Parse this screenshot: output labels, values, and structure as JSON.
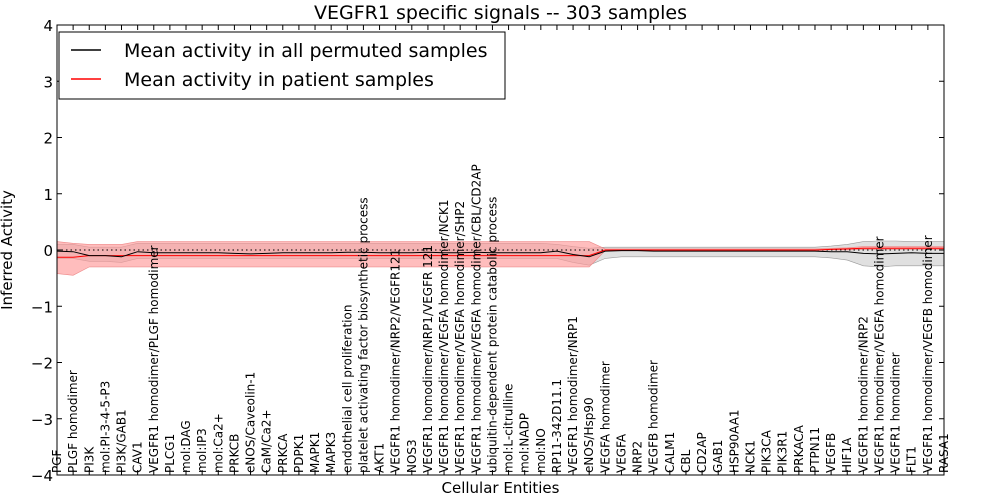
{
  "chart_data": {
    "type": "line",
    "title": "VEGFR1 specific signals -- 303 samples",
    "xlabel": "Cellular Entities",
    "ylabel": "Inferred Activity",
    "ylim": [
      -4,
      4
    ],
    "yticks": [
      "4",
      "3",
      "2",
      "1",
      "0",
      "−1",
      "−2",
      "−3",
      "−4"
    ],
    "grid": false,
    "legend": {
      "position": "top-left",
      "entries": [
        {
          "label": "Mean activity in all permuted samples",
          "color": "#000000"
        },
        {
          "label": "Mean activity in patient samples",
          "color": "#ff0000"
        }
      ]
    },
    "categories": [
      "PGF",
      "PLGF homodimer",
      "PI3K",
      "mol:PI-3-4-5-P3",
      "PI3K/GAB1",
      "CAV1",
      "VEGFR1 homodimer/PLGF homodimer",
      "PLCG1",
      "mol:DAG",
      "mol:IP3",
      "mol:Ca2+",
      "PRKCB",
      "eNOS/Caveolin-1",
      "CaM/Ca2+",
      "PRKCA",
      "PDPK1",
      "MAPK1",
      "MAPK3",
      "endothelial cell proliferation",
      "platelet activating factor biosynthetic process",
      "AKT1",
      "VEGFR1 homodimer/NRP2/VEGFR121",
      "NOS3",
      "VEGFR1 homodimer/NRP1/VEGFR 121",
      "VEGFR1 homodimer/VEGFA homodimer/NCK1",
      "VEGFR1 homodimer/VEGFA homodimer/SHP2",
      "VEGFR1 homodimer/VEGFA homodimer/CBL/CD2AP",
      "ubiquitin-dependent protein catabolic process",
      "mol:L-citrulline",
      "mol:NADP",
      "mol:NO",
      "RP11-342D11.1",
      "VEGFR1 homodimer/NRP1",
      "eNOS/Hsp90",
      "VEGFA homodimer",
      "VEGFA",
      "NRP2",
      "VEGFB homodimer",
      "CALM1",
      "CBL",
      "CD2AP",
      "GAB1",
      "HSP90AA1",
      "NCK1",
      "PIK3CA",
      "PIK3R1",
      "PRKACA",
      "PTPN11",
      "VEGFB",
      "HIF1A",
      "VEGFR1 homodimer/NRP2",
      "VEGFR1 homodimer/VEGFA homodimer",
      "VEGFR1 homodimer",
      "FLT1",
      "VEGFR1 homodimer/VEGFB homodimer",
      "RASA1"
    ],
    "series": [
      {
        "name": "Mean activity in all permuted samples",
        "color": "#000000",
        "values": [
          -0.02,
          -0.03,
          -0.1,
          -0.1,
          -0.12,
          -0.03,
          -0.05,
          -0.05,
          -0.05,
          -0.05,
          -0.05,
          -0.06,
          -0.07,
          -0.06,
          -0.05,
          -0.05,
          -0.05,
          -0.05,
          -0.04,
          -0.04,
          -0.05,
          -0.05,
          -0.05,
          -0.04,
          -0.05,
          -0.05,
          -0.04,
          -0.05,
          -0.05,
          -0.05,
          -0.05,
          -0.02,
          -0.08,
          -0.12,
          -0.02,
          -0.01,
          -0.01,
          -0.02,
          -0.02,
          -0.02,
          -0.02,
          -0.02,
          -0.02,
          -0.02,
          -0.02,
          -0.02,
          -0.02,
          -0.02,
          -0.03,
          -0.03,
          -0.06,
          -0.07,
          -0.06,
          -0.05,
          -0.06,
          -0.06
        ],
        "band": {
          "fill": "#cccccc",
          "lower": [
            -0.15,
            -0.15,
            -0.2,
            -0.2,
            -0.22,
            -0.15,
            -0.15,
            -0.15,
            -0.15,
            -0.15,
            -0.15,
            -0.15,
            -0.15,
            -0.15,
            -0.15,
            -0.15,
            -0.15,
            -0.15,
            -0.15,
            -0.15,
            -0.15,
            -0.15,
            -0.15,
            -0.15,
            -0.15,
            -0.15,
            -0.15,
            -0.15,
            -0.15,
            -0.15,
            -0.15,
            -0.15,
            -0.22,
            -0.27,
            -0.15,
            -0.12,
            -0.12,
            -0.12,
            -0.12,
            -0.12,
            -0.12,
            -0.12,
            -0.12,
            -0.12,
            -0.12,
            -0.12,
            -0.12,
            -0.12,
            -0.14,
            -0.18,
            -0.28,
            -0.3,
            -0.28,
            -0.28,
            -0.28,
            -0.28
          ],
          "upper": [
            0.1,
            0.1,
            0.05,
            0.05,
            0.05,
            0.12,
            0.12,
            0.12,
            0.12,
            0.12,
            0.12,
            0.12,
            0.12,
            0.12,
            0.12,
            0.12,
            0.12,
            0.12,
            0.12,
            0.12,
            0.12,
            0.12,
            0.12,
            0.12,
            0.12,
            0.12,
            0.12,
            0.12,
            0.12,
            0.12,
            0.12,
            0.1,
            0.06,
            0.03,
            0.05,
            0.05,
            0.05,
            0.05,
            0.05,
            0.05,
            0.05,
            0.05,
            0.05,
            0.05,
            0.05,
            0.05,
            0.05,
            0.05,
            0.07,
            0.1,
            0.15,
            0.16,
            0.16,
            0.15,
            0.15,
            0.15
          ]
        }
      },
      {
        "name": "Mean activity in patient samples",
        "color": "#ff0000",
        "values": [
          -0.13,
          -0.13,
          -0.1,
          -0.1,
          -0.1,
          -0.1,
          -0.1,
          -0.1,
          -0.1,
          -0.1,
          -0.1,
          -0.1,
          -0.1,
          -0.1,
          -0.1,
          -0.1,
          -0.1,
          -0.1,
          -0.1,
          -0.1,
          -0.1,
          -0.1,
          -0.1,
          -0.1,
          -0.1,
          -0.1,
          -0.1,
          -0.1,
          -0.1,
          -0.1,
          -0.1,
          -0.1,
          -0.1,
          -0.1,
          0.0,
          0.0,
          0.0,
          0.0,
          0.0,
          0.0,
          0.0,
          0.0,
          0.0,
          0.0,
          0.0,
          0.0,
          0.0,
          0.0,
          0.01,
          0.02,
          0.03,
          0.03,
          0.03,
          0.03,
          0.03,
          0.03
        ],
        "band": {
          "fill": "#ff9999",
          "lower": [
            -0.42,
            -0.45,
            -0.3,
            -0.3,
            -0.3,
            -0.3,
            -0.3,
            -0.3,
            -0.3,
            -0.3,
            -0.3,
            -0.3,
            -0.3,
            -0.3,
            -0.3,
            -0.3,
            -0.3,
            -0.3,
            -0.3,
            -0.3,
            -0.3,
            -0.3,
            -0.3,
            -0.3,
            -0.3,
            -0.3,
            -0.3,
            -0.3,
            -0.3,
            -0.3,
            -0.3,
            -0.3,
            -0.3,
            -0.3,
            -0.01,
            -0.01,
            -0.01,
            -0.01,
            -0.01,
            -0.01,
            -0.01,
            -0.01,
            -0.01,
            -0.01,
            -0.01,
            -0.01,
            -0.01,
            -0.01,
            0.0,
            0.0,
            0.01,
            0.01,
            0.01,
            0.01,
            0.01,
            0.01
          ],
          "upper": [
            0.15,
            0.12,
            0.1,
            0.1,
            0.1,
            0.15,
            0.15,
            0.15,
            0.15,
            0.15,
            0.15,
            0.15,
            0.15,
            0.15,
            0.15,
            0.15,
            0.15,
            0.15,
            0.15,
            0.15,
            0.15,
            0.15,
            0.15,
            0.15,
            0.15,
            0.15,
            0.15,
            0.15,
            0.15,
            0.15,
            0.15,
            0.15,
            0.15,
            0.15,
            0.02,
            0.02,
            0.02,
            0.02,
            0.02,
            0.02,
            0.02,
            0.02,
            0.02,
            0.02,
            0.02,
            0.02,
            0.02,
            0.02,
            0.03,
            0.04,
            0.06,
            0.06,
            0.06,
            0.06,
            0.06,
            0.06
          ]
        }
      }
    ]
  }
}
